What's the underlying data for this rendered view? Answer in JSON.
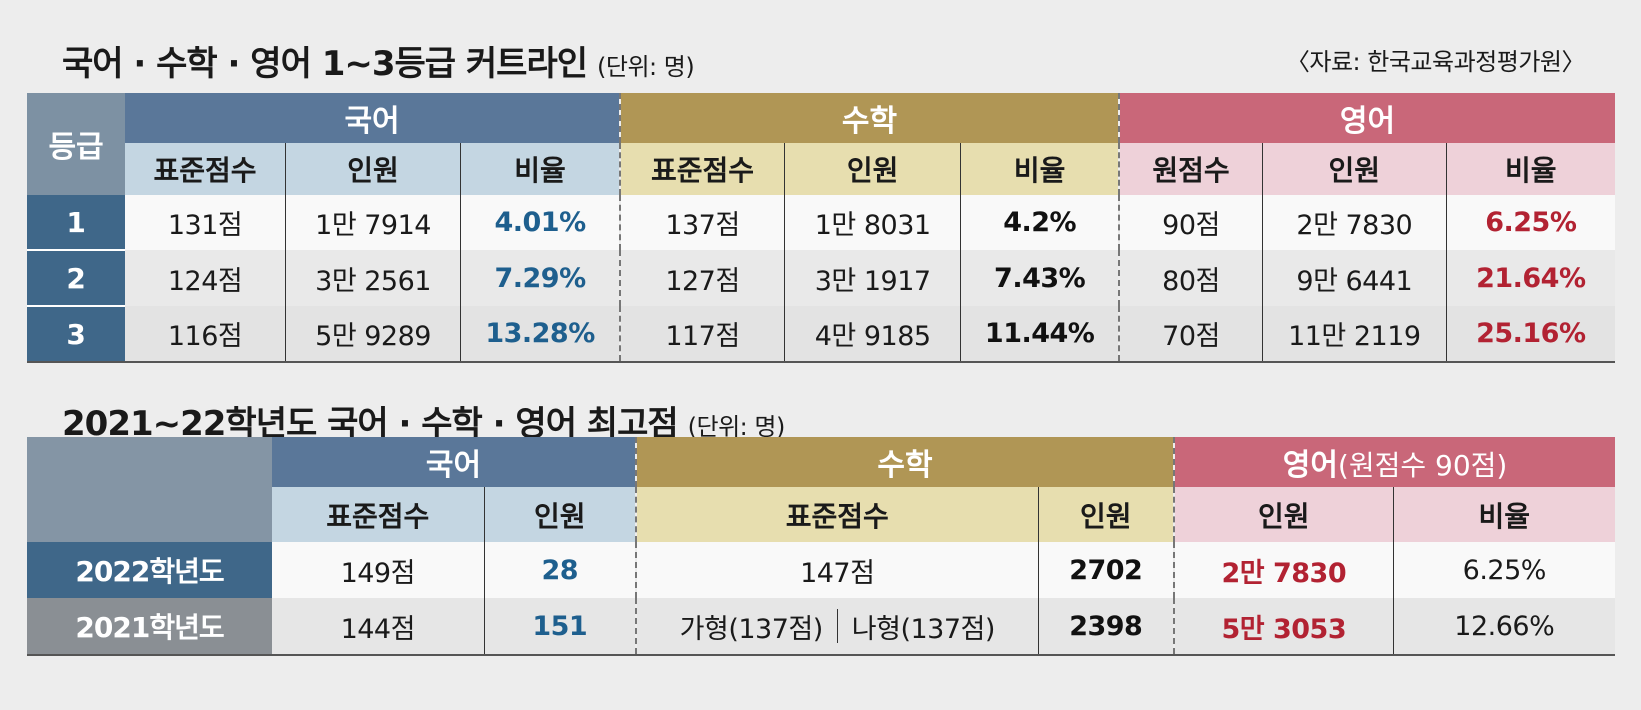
{
  "table1": {
    "title": "국어 · 수학 · 영어 1~3등급 커트라인",
    "unit": "(단위: 명)",
    "source": "〈자료: 한국교육과정평가원〉",
    "grade_header": "등급",
    "subjects": {
      "korean": "국어",
      "math": "수학",
      "english": "영어"
    },
    "sub_headers": {
      "korean": [
        "표준점수",
        "인원",
        "비율"
      ],
      "math": [
        "표준점수",
        "인원",
        "비율"
      ],
      "english": [
        "원점수",
        "인원",
        "비율"
      ]
    },
    "rows": [
      {
        "grade": "1",
        "korean": [
          "131점",
          "1만 7914",
          "4.01%"
        ],
        "math": [
          "137점",
          "1만 8031",
          "4.2%"
        ],
        "english": [
          "90점",
          "2만 7830",
          "6.25%"
        ]
      },
      {
        "grade": "2",
        "korean": [
          "124점",
          "3만 2561",
          "7.29%"
        ],
        "math": [
          "127점",
          "3만 1917",
          "7.43%"
        ],
        "english": [
          "80점",
          "9만 6441",
          "21.64%"
        ]
      },
      {
        "grade": "3",
        "korean": [
          "116점",
          "5만 9289",
          "13.28%"
        ],
        "math": [
          "117점",
          "4만 9185",
          "11.44%"
        ],
        "english": [
          "70점",
          "11만 2119",
          "25.16%"
        ]
      }
    ]
  },
  "table2": {
    "title": "2021~22학년도 국어 · 수학 · 영어 최고점",
    "unit": "(단위: 명)",
    "subjects": {
      "korean": "국어",
      "math": "수학",
      "english": "영어",
      "english_note": "(원점수 90점)"
    },
    "sub_headers": {
      "korean": [
        "표준점수",
        "인원"
      ],
      "math": [
        "표준점수",
        "인원"
      ],
      "english": [
        "인원",
        "비율"
      ]
    },
    "rows": [
      {
        "year": "2022학년도",
        "korean_score": "149점",
        "korean_count": "28",
        "math_score": "147점",
        "math_count": "2702",
        "english_count": "2만 7830",
        "english_ratio": "6.25%"
      },
      {
        "year": "2021학년도",
        "korean_score": "144점",
        "korean_count": "151",
        "math_score_a": "가형(137점)",
        "math_score_b": "나형(137점)",
        "math_count": "2398",
        "english_count": "5만 3053",
        "english_ratio": "12.66%"
      }
    ]
  },
  "colors": {
    "korean_header": "#5a7799",
    "math_header": "#b09655",
    "english_header": "#c96779",
    "korean_accent": "#1e5f8e",
    "english_accent": "#b22232"
  }
}
